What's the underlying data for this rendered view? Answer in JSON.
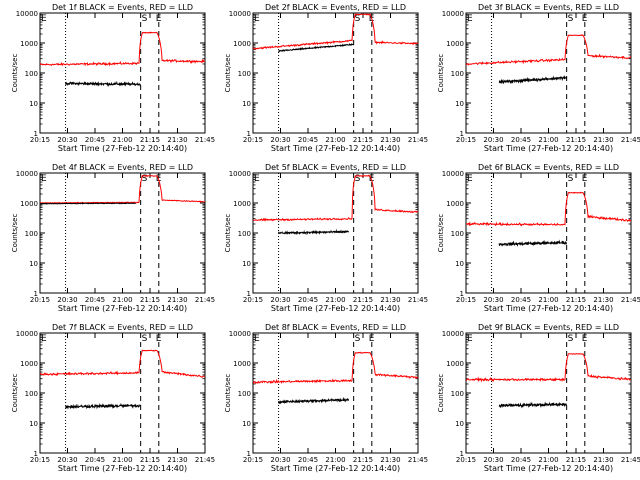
{
  "chart_data": {
    "type": "line",
    "layout": "3x3 grid",
    "xlabel": "Start Time (27-Feb-12 20:14:40)",
    "ylabel": "Counts/sec",
    "x_ticks": [
      "20:15",
      "20:30",
      "20:45",
      "21:00",
      "21:15",
      "21:30",
      "21:45"
    ],
    "x_range_minutes": [
      0,
      100
    ],
    "y_scale": "log",
    "y_ticks": [
      "1",
      "10",
      "100",
      "1000",
      "10000"
    ],
    "ylim": [
      1,
      10000
    ],
    "series_colors": {
      "events": "#000000",
      "lld": "#ff0000"
    },
    "markers": {
      "E": 0,
      "S": 61,
      "E2": 72
    },
    "vlines_dotted": [
      15.5
    ],
    "vlines_dashed": [
      61,
      72
    ],
    "panels": [
      {
        "title": "Det 1f BLACK = Events, RED = LLD",
        "events": {
          "start": 15.5,
          "end": 61,
          "level": 45,
          "end_level": 42,
          "noise": 0.06
        },
        "lld": {
          "level_start": 190,
          "level_end": 210,
          "noise": 0.05,
          "peak": 2200,
          "post": 260,
          "post_end": 240
        }
      },
      {
        "title": "Det 2f BLACK = Events, RED = LLD",
        "events": {
          "start": 15.5,
          "end": 61,
          "level": 540,
          "end_level": 900,
          "noise": 0.03
        },
        "lld": {
          "level_start": 650,
          "level_end": 1200,
          "noise": 0.04,
          "peak": 9000,
          "post": 1050,
          "post_end": 950
        }
      },
      {
        "title": "Det 3f BLACK = Events, RED = LLD",
        "events": {
          "start": 20,
          "end": 61,
          "level": 50,
          "end_level": 70,
          "noise": 0.06
        },
        "lld": {
          "level_start": 200,
          "level_end": 280,
          "noise": 0.05,
          "peak": 1800,
          "post": 380,
          "post_end": 320
        }
      },
      {
        "title": "Det 4f BLACK = Events, RED = LLD",
        "events": {
          "start": 0,
          "end": 58,
          "level": 950,
          "end_level": 980,
          "noise": 0.015
        },
        "lld": {
          "level_start": 1000,
          "level_end": 1050,
          "noise": 0.02,
          "peak": 8000,
          "post": 1250,
          "post_end": 1100
        }
      },
      {
        "title": "Det 5f BLACK = Events, RED = LLD",
        "events": {
          "start": 15.5,
          "end": 58,
          "level": 100,
          "end_level": 110,
          "noise": 0.05
        },
        "lld": {
          "level_start": 270,
          "level_end": 300,
          "noise": 0.04,
          "peak": 8000,
          "post": 600,
          "post_end": 500
        }
      },
      {
        "title": "Det 6f BLACK = Events, RED = LLD",
        "events": {
          "start": 20,
          "end": 61,
          "level": 42,
          "end_level": 48,
          "noise": 0.07
        },
        "lld": {
          "level_start": 200,
          "level_end": 190,
          "noise": 0.05,
          "peak": 2200,
          "post": 350,
          "post_end": 260
        }
      },
      {
        "title": "Det 7f BLACK = Events, RED = LLD",
        "events": {
          "start": 15.5,
          "end": 61,
          "level": 35,
          "end_level": 38,
          "noise": 0.07
        },
        "lld": {
          "level_start": 420,
          "level_end": 470,
          "noise": 0.05,
          "peak": 2600,
          "post": 500,
          "post_end": 350
        }
      },
      {
        "title": "Det 8f BLACK = Events, RED = LLD",
        "events": {
          "start": 15.5,
          "end": 58,
          "level": 50,
          "end_level": 60,
          "noise": 0.06
        },
        "lld": {
          "level_start": 230,
          "level_end": 260,
          "noise": 0.05,
          "peak": 2200,
          "post": 420,
          "post_end": 330
        }
      },
      {
        "title": "Det 9f BLACK = Events, RED = LLD",
        "events": {
          "start": 20,
          "end": 61,
          "level": 38,
          "end_level": 42,
          "noise": 0.07
        },
        "lld": {
          "level_start": 280,
          "level_end": 280,
          "noise": 0.05,
          "peak": 2000,
          "post": 370,
          "post_end": 280
        }
      }
    ]
  }
}
